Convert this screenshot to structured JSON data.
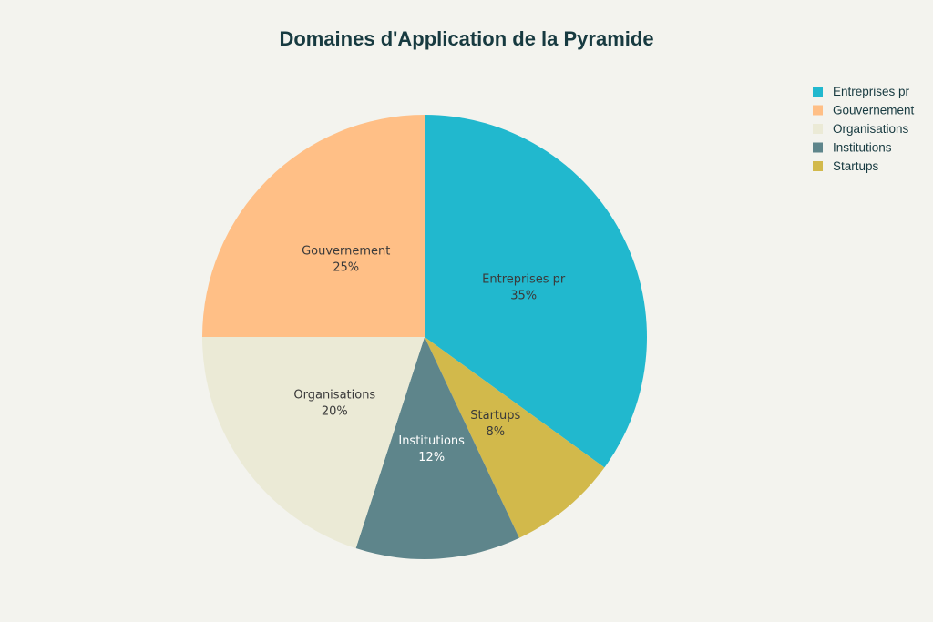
{
  "chart_data": {
    "type": "pie",
    "title": "Domaines d'Application de la Pyramide",
    "slices": [
      {
        "label": "Entreprises pr",
        "value": 35,
        "display": "35%",
        "color": "#21b8ce",
        "label_color": "#3a3a3a"
      },
      {
        "label": "Startups",
        "value": 8,
        "display": "8%",
        "color": "#d2b94b",
        "label_color": "#3a3a3a"
      },
      {
        "label": "Institutions",
        "value": 12,
        "display": "12%",
        "color": "#5e858b",
        "label_color": "#ffffff"
      },
      {
        "label": "Organisations",
        "value": 20,
        "display": "20%",
        "color": "#ebead6",
        "label_color": "#3a3a3a"
      },
      {
        "label": "Gouvernement",
        "value": 25,
        "display": "25%",
        "color": "#ffbf86",
        "label_color": "#3a3a3a"
      }
    ],
    "legend": {
      "placement": "top-right",
      "order": [
        "Entreprises pr",
        "Gouvernement",
        "Organisations",
        "Institutions",
        "Startups"
      ]
    }
  }
}
